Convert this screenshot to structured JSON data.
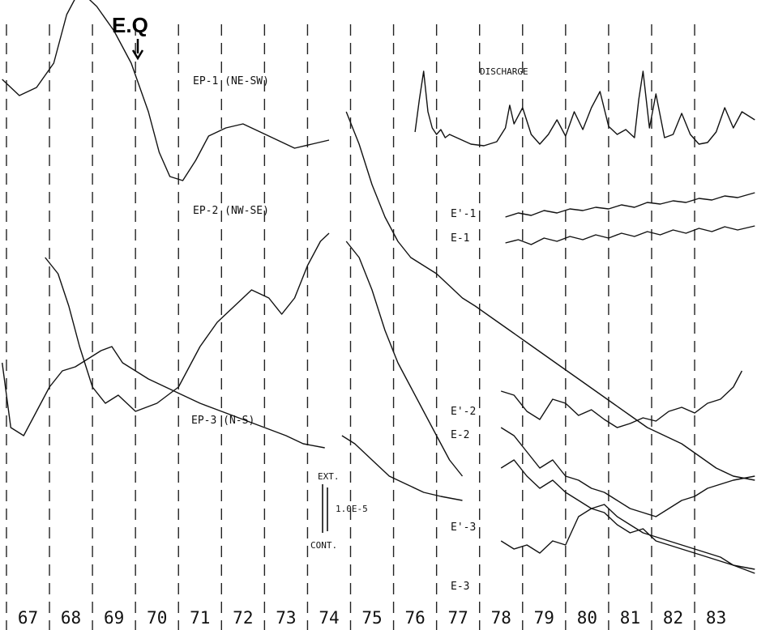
{
  "chart_data": {
    "type": "line",
    "event_marker": {
      "label": "E.Q",
      "x": 70.15
    },
    "x_ticks": [
      "67",
      "68",
      "69",
      "70",
      "71",
      "72",
      "73",
      "74",
      "75",
      "76",
      "77",
      "78",
      "79",
      "80",
      "81",
      "82",
      "83"
    ],
    "xlim": [
      66.35,
      83.95
    ],
    "grid": {
      "vertical": "dashed"
    },
    "labels": {
      "ep1": "EP-1 (NE-SW)",
      "ep2": "EP-2 (NW-SE)",
      "ep3": "EP-3 (N-S)",
      "discharge": "DISCHARGE",
      "e1p": "E'-1",
      "e1": "E-1",
      "e2p": "E'-2",
      "e2": "E-2",
      "e3p": "E'-3",
      "e3": "E-3",
      "ext": "EXT.",
      "cont": "CONT.",
      "scale": "1.0E-5"
    },
    "series": [
      {
        "name": "EP-1 (NE-SW)",
        "x": [
          66.4,
          66.8,
          67.2,
          67.6,
          67.9,
          68.2,
          68.6,
          69.0,
          69.4,
          69.8,
          70.05,
          70.3,
          70.6,
          70.9,
          71.2,
          71.6,
          72.0,
          72.4,
          72.8,
          73.2,
          73.6,
          74.0
        ],
        "y": [
          680,
          660,
          670,
          700,
          760,
          790,
          770,
          740,
          700,
          640,
          590,
          560,
          555,
          580,
          610,
          620,
          625,
          615,
          605,
          595,
          600,
          605
        ]
      },
      {
        "name": "EP-1 (NE-SW)",
        "x": [
          74.4,
          74.7,
          75.0,
          75.3,
          75.6,
          75.9,
          76.2,
          76.5,
          76.8,
          77.1,
          77.4,
          77.8,
          78.2,
          78.6,
          79.0,
          79.4,
          79.8,
          80.2,
          80.6,
          81.0,
          81.4,
          81.8,
          82.2,
          82.6,
          83.0,
          83.4,
          83.9
        ],
        "y": [
          640,
          600,
          550,
          510,
          480,
          460,
          450,
          440,
          425,
          410,
          400,
          385,
          370,
          355,
          340,
          325,
          310,
          295,
          280,
          265,
          250,
          240,
          230,
          215,
          200,
          190,
          185
        ]
      },
      {
        "name": "EP-2 (NW-SE)",
        "x": [
          67.4,
          67.7,
          67.95,
          68.2,
          68.5,
          68.8,
          69.1,
          69.5,
          70.0,
          70.5,
          71.0,
          71.4,
          71.8,
          72.2,
          72.6,
          72.9,
          73.2,
          73.5,
          73.8,
          74.0
        ],
        "y": [
          460,
          440,
          400,
          350,
          300,
          280,
          290,
          270,
          280,
          300,
          350,
          380,
          400,
          420,
          410,
          390,
          410,
          450,
          480,
          490
        ]
      },
      {
        "name": "EP-2 (NW-SE)",
        "x": [
          74.4,
          74.7,
          75.0,
          75.3,
          75.6,
          75.9,
          76.2,
          76.5,
          76.8,
          77.1
        ],
        "y": [
          480,
          460,
          420,
          370,
          330,
          300,
          270,
          240,
          210,
          190
        ]
      },
      {
        "name": "EP-3 (N-S)",
        "x": [
          66.4,
          66.6,
          66.9,
          67.2,
          67.5,
          67.8,
          68.1,
          68.4,
          68.7,
          68.95,
          69.2,
          69.5,
          69.8,
          70.2,
          70.6,
          71.0,
          71.5,
          72.0,
          72.5,
          73.0,
          73.4,
          73.9
        ],
        "y": [
          330,
          250,
          240,
          270,
          300,
          320,
          325,
          335,
          345,
          350,
          330,
          320,
          310,
          300,
          290,
          280,
          270,
          260,
          250,
          240,
          230,
          225
        ]
      },
      {
        "name": "EP-3 (N-S)",
        "x": [
          74.3,
          74.6,
          75.0,
          75.4,
          75.8,
          76.2,
          76.6,
          77.1
        ],
        "y": [
          240,
          230,
          210,
          190,
          180,
          170,
          165,
          160
        ]
      },
      {
        "name": "DISCHARGE",
        "x": [
          76.0,
          76.1,
          76.2,
          76.3,
          76.4,
          76.5,
          76.6,
          76.7,
          76.8,
          77.3,
          77.6,
          77.9,
          78.1,
          78.2,
          78.3,
          78.5,
          78.7,
          78.9,
          79.1,
          79.3,
          79.5,
          79.7,
          79.9,
          80.1,
          80.3,
          80.5,
          80.7,
          80.9,
          81.1,
          81.2,
          81.3,
          81.45,
          81.6,
          81.8,
          82.0,
          82.2,
          82.4,
          82.6,
          82.8,
          83.0,
          83.2,
          83.4,
          83.6,
          83.9
        ],
        "y": [
          615,
          655,
          690,
          640,
          620,
          612,
          618,
          608,
          612,
          600,
          598,
          603,
          620,
          648,
          625,
          645,
          612,
          600,
          612,
          630,
          610,
          640,
          618,
          645,
          665,
          622,
          612,
          618,
          608,
          655,
          690,
          620,
          662,
          608,
          612,
          638,
          612,
          600,
          602,
          615,
          645,
          620,
          640,
          630
        ]
      },
      {
        "name": "E'-1",
        "x": [
          78.1,
          78.4,
          78.7,
          79.0,
          79.3,
          79.6,
          79.9,
          80.2,
          80.5,
          80.8,
          81.1,
          81.4,
          81.7,
          82.0,
          82.3,
          82.6,
          82.9,
          83.2,
          83.5,
          83.9
        ],
        "y": [
          510,
          515,
          512,
          518,
          515,
          520,
          518,
          522,
          520,
          525,
          522,
          528,
          526,
          530,
          528,
          533,
          531,
          536,
          534,
          540
        ]
      },
      {
        "name": "E-1",
        "x": [
          78.1,
          78.4,
          78.7,
          79.0,
          79.3,
          79.6,
          79.9,
          80.2,
          80.5,
          80.8,
          81.1,
          81.4,
          81.7,
          82.0,
          82.3,
          82.6,
          82.9,
          83.2,
          83.5,
          83.9
        ],
        "y": [
          478,
          482,
          476,
          484,
          480,
          486,
          482,
          488,
          484,
          490,
          486,
          492,
          488,
          494,
          490,
          496,
          492,
          498,
          494,
          499
        ]
      },
      {
        "name": "E'-2",
        "x": [
          78.0,
          78.3,
          78.6,
          78.9,
          79.2,
          79.5,
          79.8,
          80.1,
          80.4,
          80.7,
          81.0,
          81.3,
          81.6,
          81.9,
          82.2,
          82.5,
          82.8,
          83.1,
          83.4,
          83.6
        ],
        "y": [
          295,
          290,
          270,
          260,
          285,
          280,
          265,
          272,
          260,
          250,
          255,
          262,
          258,
          270,
          275,
          268,
          280,
          285,
          300,
          320
        ]
      },
      {
        "name": "E-2",
        "x": [
          78.0,
          78.3,
          78.6,
          78.9,
          79.2,
          79.5,
          79.8,
          80.1,
          80.4,
          80.7,
          81.0,
          81.3,
          81.6,
          81.9,
          82.2,
          82.5,
          82.8,
          83.1,
          83.4,
          83.9
        ],
        "y": [
          250,
          240,
          220,
          200,
          210,
          190,
          185,
          175,
          170,
          160,
          150,
          145,
          140,
          150,
          160,
          165,
          175,
          180,
          185,
          190
        ]
      },
      {
        "name": "E'-3",
        "x": [
          78.0,
          78.3,
          78.6,
          78.9,
          79.2,
          79.5,
          79.8,
          80.1,
          80.4,
          80.7,
          81.0,
          81.3,
          81.6,
          81.9,
          82.2,
          82.5,
          82.8,
          83.1,
          83.4,
          83.9
        ],
        "y": [
          200,
          210,
          190,
          175,
          185,
          170,
          160,
          150,
          155,
          140,
          130,
          120,
          115,
          110,
          105,
          100,
          95,
          90,
          80,
          70
        ]
      },
      {
        "name": "E-3",
        "x": [
          78.0,
          78.3,
          78.6,
          78.9,
          79.2,
          79.5,
          79.8,
          80.1,
          80.4,
          80.7,
          81.0,
          81.3,
          81.6,
          81.9,
          82.2,
          82.5,
          82.8,
          83.1,
          83.4,
          83.9
        ],
        "y": [
          110,
          100,
          105,
          95,
          110,
          105,
          140,
          150,
          145,
          130,
          120,
          125,
          110,
          105,
          100,
          95,
          90,
          85,
          80,
          75
        ]
      }
    ]
  }
}
